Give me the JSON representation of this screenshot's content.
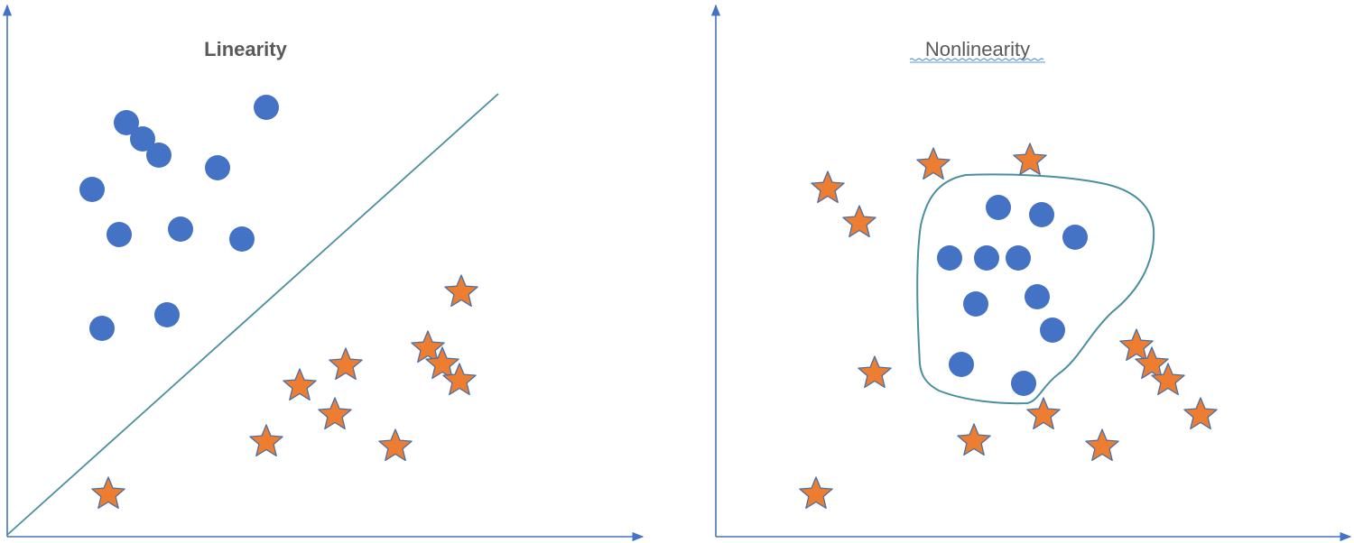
{
  "colors": {
    "axis": "#4472c4",
    "boundary": "#4a8fa0",
    "circle": "#4472c4",
    "star_fill": "#ed7d31",
    "star_stroke": "#4a6fa5",
    "title": "#595959",
    "spell_underline": "#5b9bd5"
  },
  "marker_icons": {
    "class_a": "circle",
    "class_b": "star"
  },
  "panels": [
    {
      "id": "linearity",
      "title": "Linearity",
      "boundary_shape": "straight-line",
      "circles": [
        [
          140,
          136
        ],
        [
          158,
          154
        ],
        [
          176,
          172
        ],
        [
          295,
          119
        ],
        [
          241,
          186
        ],
        [
          102,
          210
        ],
        [
          132,
          260
        ],
        [
          200,
          254
        ],
        [
          268,
          265
        ],
        [
          185,
          349
        ],
        [
          113,
          364
        ]
      ],
      "stars": [
        [
          511,
          324
        ],
        [
          474,
          386
        ],
        [
          490,
          404
        ],
        [
          509,
          422
        ],
        [
          383,
          405
        ],
        [
          332,
          428
        ],
        [
          371,
          460
        ],
        [
          438,
          495
        ],
        [
          295,
          490
        ],
        [
          120,
          548
        ]
      ]
    },
    {
      "id": "nonlinearity",
      "title": "Nonlinearity",
      "title_underlined": true,
      "boundary_shape": "closed-curve",
      "circles": [
        [
          1106,
          230
        ],
        [
          1154,
          238
        ],
        [
          1191,
          263
        ],
        [
          1052,
          286
        ],
        [
          1093,
          286
        ],
        [
          1128,
          286
        ],
        [
          1081,
          337
        ],
        [
          1149,
          329
        ],
        [
          1166,
          366
        ],
        [
          1065,
          404
        ],
        [
          1134,
          425
        ]
      ],
      "stars": [
        [
          1034,
          183
        ],
        [
          1141,
          178
        ],
        [
          917,
          209
        ],
        [
          952,
          247
        ],
        [
          969,
          414
        ],
        [
          1259,
          384
        ],
        [
          1276,
          404
        ],
        [
          1294,
          422
        ],
        [
          1156,
          460
        ],
        [
          1330,
          460
        ],
        [
          1079,
          489
        ],
        [
          1221,
          495
        ],
        [
          904,
          548
        ]
      ]
    }
  ]
}
